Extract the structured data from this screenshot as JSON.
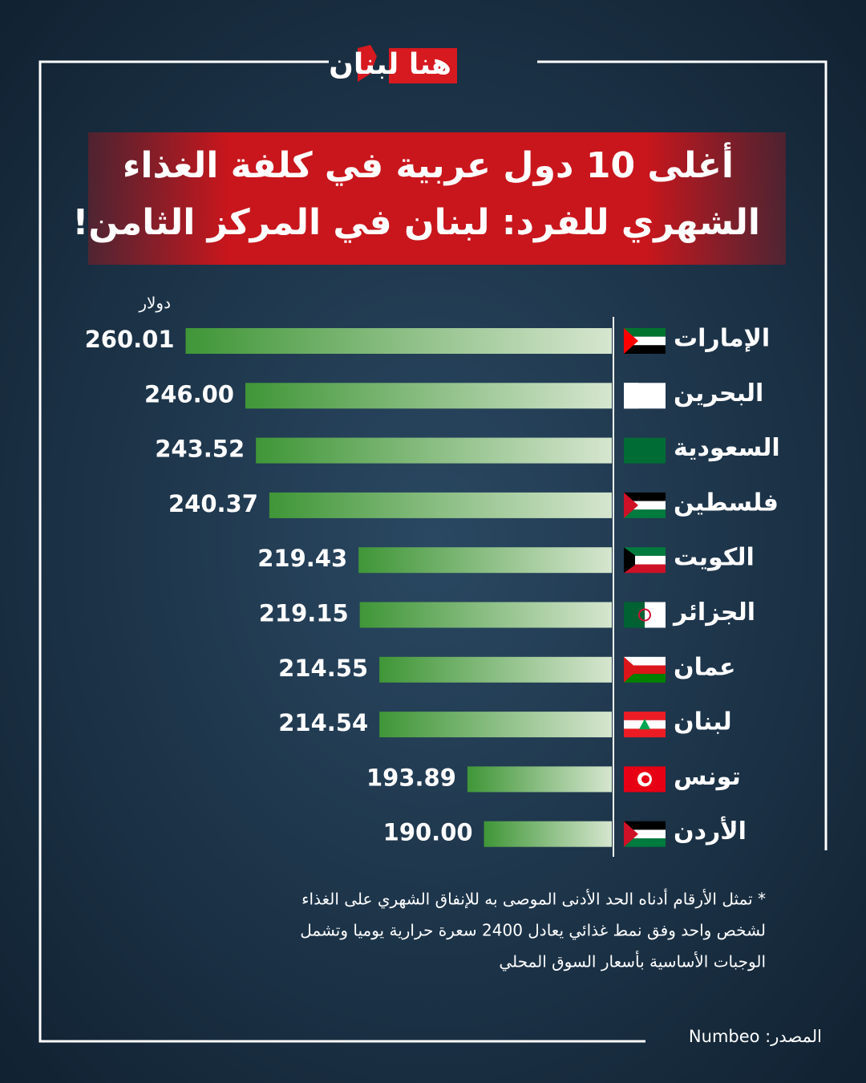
{
  "header": {
    "logo": "هنا لبنان"
  },
  "chart_data": {
    "type": "bar",
    "orientation": "horizontal",
    "title": [
      "أغلى 10 دول عربية في كلفة الغذاء",
      "الشهري للفرد: لبنان في المركز الثامن!"
    ],
    "unit_label": "دولار",
    "categories": [
      "الإمارات",
      "البحرين",
      "السعودية",
      "فلسطين",
      "الكويت",
      "الجزائر",
      "عمان",
      "لبنان",
      "تونس",
      "الأردن"
    ],
    "values": [
      260.01,
      246.0,
      243.52,
      240.37,
      219.43,
      219.15,
      214.55,
      214.54,
      193.89,
      190.0
    ],
    "value_labels": [
      "260.01",
      "246.00",
      "243.52",
      "240.37",
      "219.43",
      "219.15",
      "214.55",
      "214.54",
      "193.89",
      "190.00"
    ],
    "colors": [
      "#3f9637",
      "#d6e6cf"
    ],
    "xlim": [
      160,
      265
    ],
    "footnote": [
      "* تمثل الأرقام أدناه الحد الأدنى الموصى به للإنفاق الشهري على الغذاء",
      "لشخص واحد وفق نمط غذائي يعادل 2400 سعرة حرارية يوميا وتشمل",
      "الوجبات الأساسية بأسعار السوق المحلي"
    ],
    "source": "المصدر: Numbeo"
  }
}
